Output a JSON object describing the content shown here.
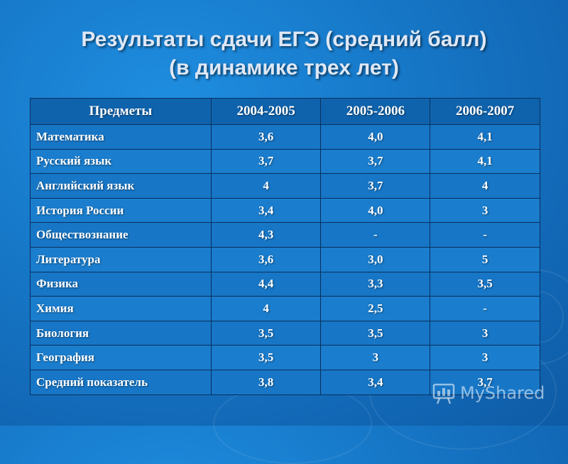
{
  "title_line1": "Результаты сдачи ЕГЭ (средний балл)",
  "title_line2": "(в динамике трех лет)",
  "table": {
    "headers": [
      "Предметы",
      "2004-2005",
      "2005-2006",
      "2006-2007"
    ],
    "rows": [
      [
        "Математика",
        "3,6",
        "4,0",
        "4,1"
      ],
      [
        "Русский язык",
        "3,7",
        "3,7",
        "4,1"
      ],
      [
        "Английский язык",
        "4",
        "3,7",
        "4"
      ],
      [
        "История России",
        "3,4",
        "4,0",
        "3"
      ],
      [
        "Обществознание",
        "4,3",
        "-",
        "-"
      ],
      [
        "Литература",
        "3,6",
        "3,0",
        "5"
      ],
      [
        "Физика",
        "4,4",
        "3,3",
        "3,5"
      ],
      [
        "Химия",
        "4",
        "2,5",
        "-"
      ],
      [
        "Биология",
        "3,5",
        "3,5",
        "3"
      ],
      [
        "География",
        "3,5",
        "3",
        "3"
      ],
      [
        "Средний показатель",
        "3,8",
        "3,4",
        "3,7"
      ]
    ]
  },
  "watermark": {
    "text": "MyShared",
    "icon": "presentation-board-icon"
  },
  "colors": {
    "background": "#1676c6",
    "header_row": "#0f63ad",
    "grid_lines": "#0a2f5e",
    "title_text": "#dfe8f5"
  }
}
